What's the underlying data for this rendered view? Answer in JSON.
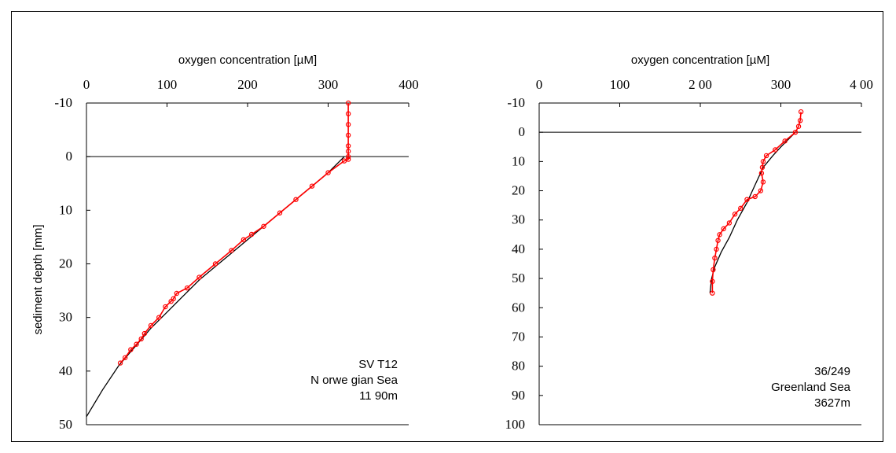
{
  "chart_data": [
    {
      "type": "line",
      "xlabel": "oxygen concentration  [µM]",
      "ylabel": "sediment depth  [mm]",
      "xlim": [
        0,
        400
      ],
      "ylim": [
        -10,
        50
      ],
      "y_inverted": true,
      "x_ticks": [
        "0",
        "100",
        "200",
        "300",
        "400"
      ],
      "y_ticks": [
        "-10",
        "0",
        "10",
        "20",
        "30",
        "40",
        "50"
      ],
      "y_tick_values": [
        -10,
        0,
        10,
        20,
        30,
        40,
        50
      ],
      "annotation": [
        "SV T12",
        "N orwe gian Sea",
        "11 90m"
      ],
      "colors": {
        "model": "#000000",
        "measured": "#ff0000"
      },
      "series": [
        {
          "x": [
            320,
            300,
            280,
            260,
            240,
            220,
            200,
            180,
            160,
            140,
            120,
            100,
            80,
            60,
            40,
            20,
            0
          ],
          "y": [
            0,
            3,
            5.5,
            8,
            10.5,
            13,
            15.5,
            18,
            20.5,
            23,
            26,
            29,
            32,
            35.5,
            39,
            43.5,
            48.5
          ]
        },
        {
          "x": [
            325,
            325,
            325,
            325,
            325,
            325,
            325,
            325,
            320,
            300,
            280,
            260,
            240,
            220,
            205,
            195,
            180,
            160,
            140,
            125,
            112,
            108,
            105,
            98,
            90,
            80,
            72,
            68,
            62,
            55,
            48,
            42
          ],
          "y": [
            -10,
            -8,
            -6,
            -4,
            -2,
            -1,
            0,
            0.5,
            0.8,
            3,
            5.5,
            8,
            10.5,
            13,
            14.5,
            15.5,
            17.5,
            20,
            22.5,
            24.5,
            25.5,
            26.5,
            27,
            28,
            30,
            31.5,
            33,
            34,
            35,
            36,
            37.5,
            38.5
          ]
        }
      ]
    },
    {
      "type": "line",
      "xlabel": "oxygen concentration  [µM]",
      "ylabel": "",
      "xlim": [
        0,
        400
      ],
      "ylim": [
        -10,
        100
      ],
      "y_inverted": true,
      "x_ticks": [
        "0",
        "100",
        "2 00",
        "300",
        "4 00"
      ],
      "y_ticks": [
        "-10",
        "0",
        "10",
        "20",
        "30",
        "40",
        "50",
        "60",
        "70",
        "80",
        "90",
        "100"
      ],
      "y_tick_values": [
        -10,
        0,
        10,
        20,
        30,
        40,
        50,
        60,
        70,
        80,
        90,
        100
      ],
      "annotation": [
        "36/249",
        "Greenland Sea",
        "3627m"
      ],
      "colors": {
        "model": "#000000",
        "measured": "#ff0000"
      },
      "series": [
        {
          "x": [
            318,
            300,
            290,
            278,
            268,
            258,
            246,
            236,
            226,
            218,
            214,
            212
          ],
          "y": [
            0,
            5,
            8,
            12,
            18,
            24,
            30,
            36,
            41,
            46,
            50,
            55
          ]
        },
        {
          "x": [
            325,
            324,
            322,
            318,
            305,
            293,
            282,
            278,
            277,
            276,
            278,
            275,
            268,
            258,
            250,
            243,
            236,
            229,
            224,
            222,
            220,
            218,
            216,
            215,
            215
          ],
          "y": [
            -7,
            -4,
            -2,
            0,
            3,
            6,
            8,
            10,
            12,
            14,
            17,
            20,
            22,
            23,
            26,
            28,
            31,
            33,
            35,
            37,
            40,
            43,
            47,
            51,
            55
          ]
        }
      ]
    }
  ]
}
